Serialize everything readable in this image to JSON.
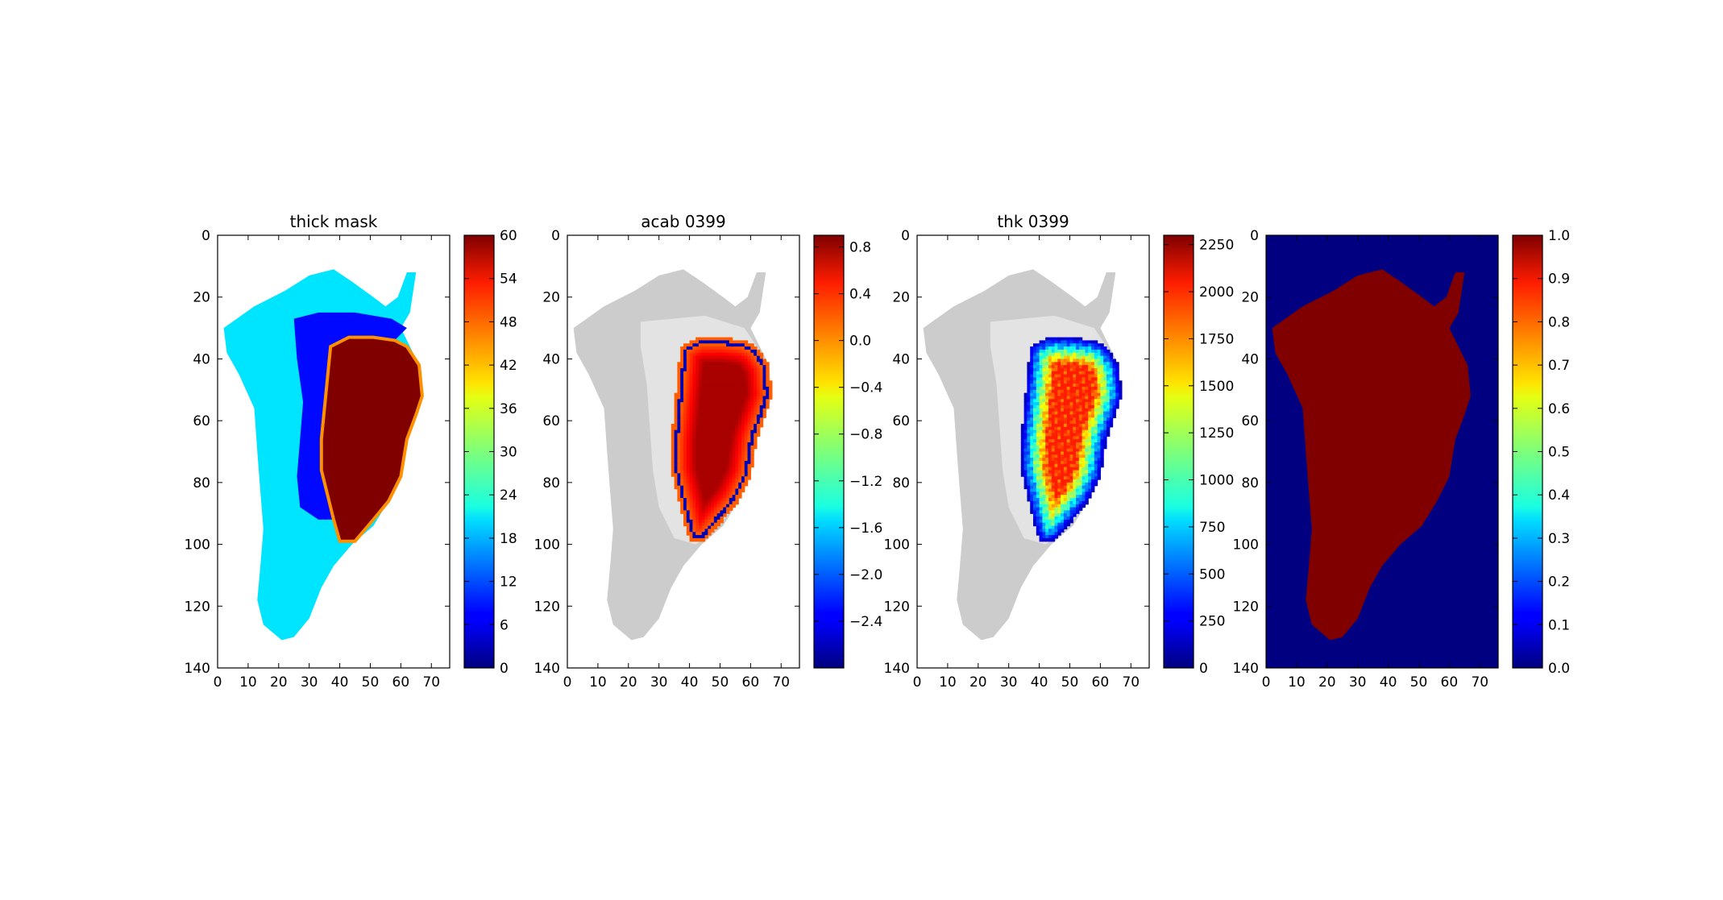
{
  "figure": {
    "panels": [
      {
        "title": "thick mask",
        "colorbar_ticks": [
          "0",
          "6",
          "12",
          "18",
          "24",
          "30",
          "36",
          "42",
          "48",
          "54",
          "60"
        ]
      },
      {
        "title": "acab 0399",
        "colorbar_ticks": [
          "−2.4",
          "−2.0",
          "−1.6",
          "−1.2",
          "−0.8",
          "−0.4",
          "0.0",
          "0.4",
          "0.8"
        ]
      },
      {
        "title": "thk 0399",
        "colorbar_ticks": [
          "0",
          "250",
          "500",
          "750",
          "1000",
          "1250",
          "1500",
          "1750",
          "2000",
          "2250"
        ]
      },
      {
        "title": "",
        "colorbar_ticks": [
          "0.0",
          "0.1",
          "0.2",
          "0.3",
          "0.4",
          "0.5",
          "0.6",
          "0.7",
          "0.8",
          "0.9",
          "1.0"
        ]
      }
    ],
    "x_tick_labels": [
      "0",
      "10",
      "20",
      "30",
      "40",
      "50",
      "60",
      "70"
    ],
    "y_tick_labels": [
      "0",
      "20",
      "40",
      "60",
      "80",
      "100",
      "120",
      "140"
    ]
  },
  "chart_data": [
    {
      "type": "heatmap",
      "title": "thick mask",
      "colormap": "jet",
      "xlim": [
        0,
        76
      ],
      "ylim": [
        140,
        0
      ],
      "clim": [
        0,
        60
      ],
      "xticks": [
        0,
        10,
        20,
        30,
        40,
        50,
        60,
        70
      ],
      "yticks": [
        0,
        20,
        40,
        60,
        80,
        100,
        120,
        140
      ],
      "colorbar_ticks": [
        0,
        6,
        12,
        18,
        24,
        30,
        36,
        42,
        48,
        54,
        60
      ],
      "regions": {
        "land_outside_ice": 21,
        "western_inner_band": 8,
        "ice_margin": 44,
        "ice_interior": 60,
        "ocean": "blank"
      }
    },
    {
      "type": "heatmap",
      "title": "acab 0399",
      "colormap": "jet",
      "xlim": [
        0,
        76
      ],
      "ylim": [
        140,
        0
      ],
      "clim": [
        -2.8,
        0.9
      ],
      "xticks": [
        0,
        10,
        20,
        30,
        40,
        50,
        60,
        70
      ],
      "yticks": [
        0,
        20,
        40,
        60,
        80,
        100,
        120,
        140
      ],
      "colorbar_ticks": [
        -2.4,
        -2.0,
        -1.6,
        -1.2,
        -0.8,
        -0.4,
        0.0,
        0.4,
        0.8
      ],
      "regions": {
        "land_outside_ice": "masked (gray)",
        "ice_margin": -2.6,
        "ice_edge_ring": 0.1,
        "ice_interior": 0.75
      }
    },
    {
      "type": "heatmap",
      "title": "thk 0399",
      "colormap": "jet",
      "xlim": [
        0,
        76
      ],
      "ylim": [
        140,
        0
      ],
      "clim": [
        0,
        2300
      ],
      "xticks": [
        0,
        10,
        20,
        30,
        40,
        50,
        60,
        70
      ],
      "yticks": [
        0,
        20,
        40,
        60,
        80,
        100,
        120,
        140
      ],
      "colorbar_ticks": [
        0,
        250,
        500,
        750,
        1000,
        1250,
        1500,
        1750,
        2000,
        2250
      ],
      "regions": {
        "land_outside_ice": "masked (gray)",
        "ice_edge": 100,
        "ice_interior_max": 1950
      }
    },
    {
      "type": "heatmap",
      "title": "",
      "colormap": "jet",
      "xlim": [
        0,
        76
      ],
      "ylim": [
        140,
        0
      ],
      "clim": [
        0,
        1
      ],
      "xticks": [
        0,
        10,
        20,
        30,
        40,
        50,
        60,
        70
      ],
      "yticks": [
        0,
        20,
        40,
        60,
        80,
        100,
        120,
        140
      ],
      "colorbar_ticks": [
        0.0,
        0.1,
        0.2,
        0.3,
        0.4,
        0.5,
        0.6,
        0.7,
        0.8,
        0.9,
        1.0
      ],
      "regions": {
        "land": 1.0,
        "ocean": 0.0
      }
    }
  ]
}
